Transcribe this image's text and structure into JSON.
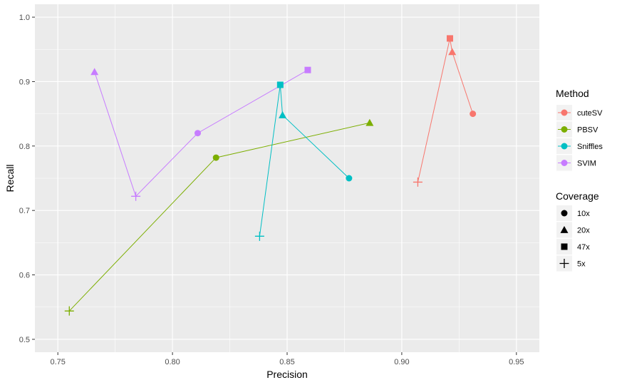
{
  "chart_data": {
    "type": "scatter",
    "title": "",
    "xlabel": "Precision",
    "ylabel": "Recall",
    "xlim": [
      0.74,
      0.96
    ],
    "ylim": [
      0.48,
      1.02
    ],
    "x_ticks": [
      0.75,
      0.8,
      0.85,
      0.9,
      0.95
    ],
    "x_tick_labels": [
      "0.75",
      "0.80",
      "0.85",
      "0.90",
      "0.95"
    ],
    "y_ticks": [
      0.5,
      0.6,
      0.7,
      0.8,
      0.9,
      1.0
    ],
    "y_tick_labels": [
      "0.5",
      "0.6",
      "0.7",
      "0.8",
      "0.9",
      "1.0"
    ],
    "grid": true,
    "panel_background": "#ebebeb",
    "legend_position": "right",
    "color_legend_title": "Method",
    "shape_legend_title": "Coverage",
    "coverage_levels": [
      {
        "label": "10x",
        "shape": "circle"
      },
      {
        "label": "20x",
        "shape": "triangle"
      },
      {
        "label": "47x",
        "shape": "square"
      },
      {
        "label": "5x",
        "shape": "plus"
      }
    ],
    "series": [
      {
        "name": "cuteSV",
        "color": "#f8766d",
        "points": [
          {
            "coverage": "5x",
            "x": 0.907,
            "y": 0.744
          },
          {
            "coverage": "47x",
            "x": 0.921,
            "y": 0.967
          },
          {
            "coverage": "20x",
            "x": 0.922,
            "y": 0.946
          },
          {
            "coverage": "10x",
            "x": 0.931,
            "y": 0.85
          }
        ]
      },
      {
        "name": "PBSV",
        "color": "#7cae00",
        "points": [
          {
            "coverage": "5x",
            "x": 0.755,
            "y": 0.544
          },
          {
            "coverage": "10x",
            "x": 0.819,
            "y": 0.782
          },
          {
            "coverage": "20x",
            "x": 0.886,
            "y": 0.836
          }
        ]
      },
      {
        "name": "Sniffles",
        "color": "#00bfc4",
        "points": [
          {
            "coverage": "5x",
            "x": 0.838,
            "y": 0.66
          },
          {
            "coverage": "47x",
            "x": 0.847,
            "y": 0.895
          },
          {
            "coverage": "20x",
            "x": 0.848,
            "y": 0.848
          },
          {
            "coverage": "10x",
            "x": 0.877,
            "y": 0.75
          }
        ]
      },
      {
        "name": "SVIM",
        "color": "#c77cff",
        "points": [
          {
            "coverage": "20x",
            "x": 0.766,
            "y": 0.915
          },
          {
            "coverage": "5x",
            "x": 0.784,
            "y": 0.722
          },
          {
            "coverage": "10x",
            "x": 0.811,
            "y": 0.82
          },
          {
            "coverage": "47x",
            "x": 0.859,
            "y": 0.918
          }
        ]
      }
    ]
  }
}
